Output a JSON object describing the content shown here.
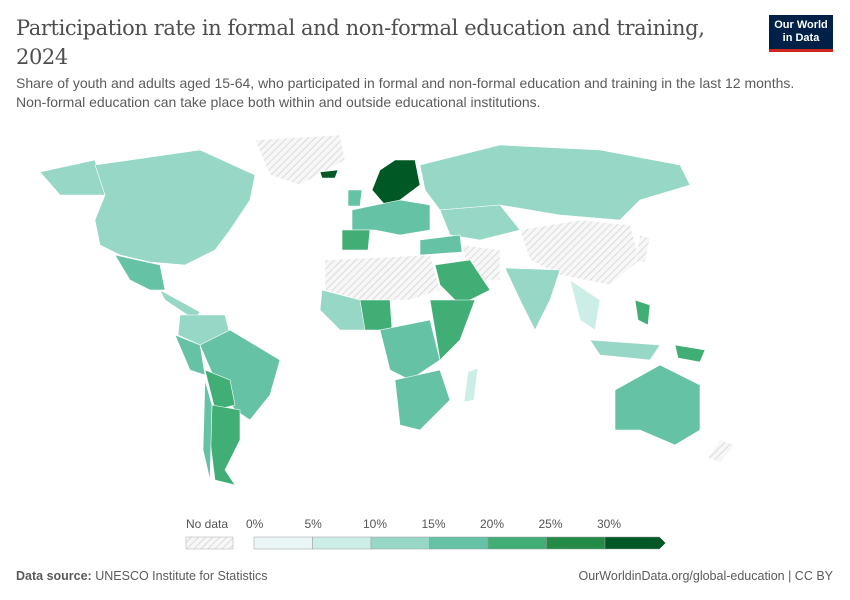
{
  "header": {
    "title": "Participation rate in formal and non-formal education and training, 2024",
    "subtitle": "Share of youth and adults aged 15-64, who participated in formal and non-formal education and training in the last 12 months. Non-formal education can take place both within and outside educational institutions.",
    "logo": "Our World in Data"
  },
  "legend": {
    "no_data_label": "No data",
    "ticks": [
      "0%",
      "5%",
      "10%",
      "15%",
      "20%",
      "25%",
      "30%"
    ],
    "bin_colors": [
      "#eaf6f6",
      "#cdeee6",
      "#97d7c6",
      "#66c2a5",
      "#41ae76",
      "#238b45",
      "#005824"
    ],
    "no_data_color": "#e6e6e6"
  },
  "footer": {
    "source_label": "Data source:",
    "source": "UNESCO Institute for Statistics",
    "url_license": "OurWorldinData.org/global-education | CC BY"
  }
}
